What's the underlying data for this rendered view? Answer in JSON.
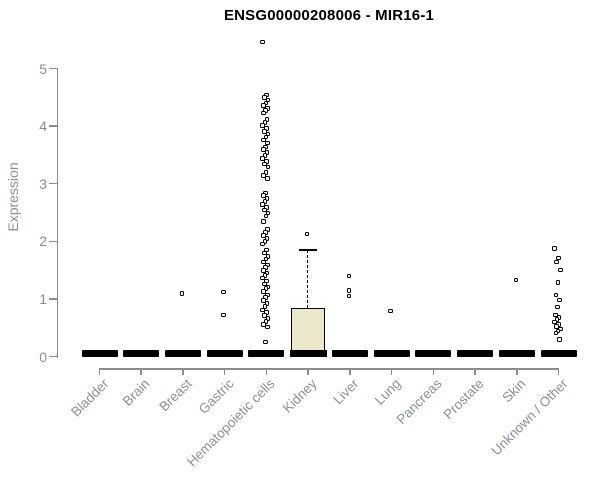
{
  "chart_data": {
    "type": "boxplot",
    "title": "ENSG00000208006 - MIR16-1",
    "xlabel": "",
    "ylabel": "Expression",
    "ylim": [
      0,
      5.6
    ],
    "yticks": [
      0,
      1,
      2,
      3,
      4,
      5
    ],
    "grid": false,
    "legend": null,
    "colors": {
      "box_fill": "#ece8cc",
      "box_border": "#000000",
      "axis_line": "#8c8c8c",
      "tick_label": "#8a909b",
      "title": "#000000",
      "point": "#000000",
      "background": "#ffffff"
    },
    "categories": [
      "Bladder",
      "Brain",
      "Breast",
      "Gastric",
      "Hematopoietic cells",
      "Kidney",
      "Liver",
      "Lung",
      "Pancreas",
      "Prostate",
      "Skin",
      "Unknown / Other"
    ],
    "boxes": [
      {
        "category": "Bladder",
        "q1": 0,
        "median": 0.04,
        "q3": 0.07,
        "whisker_low": 0,
        "whisker_high": 0.07,
        "collapsed": true,
        "outliers": []
      },
      {
        "category": "Brain",
        "q1": 0,
        "median": 0.04,
        "q3": 0.07,
        "whisker_low": 0,
        "whisker_high": 0.07,
        "collapsed": true,
        "outliers": []
      },
      {
        "category": "Breast",
        "q1": 0,
        "median": 0.04,
        "q3": 0.07,
        "whisker_low": 0,
        "whisker_high": 0.07,
        "collapsed": true,
        "outliers": [
          1.09
        ]
      },
      {
        "category": "Gastric",
        "q1": 0,
        "median": 0.04,
        "q3": 0.07,
        "whisker_low": 0,
        "whisker_high": 0.07,
        "collapsed": true,
        "outliers": [
          1.12,
          0.72
        ]
      },
      {
        "category": "Hematopoietic cells",
        "q1": 0,
        "median": 0.04,
        "q3": 0.07,
        "whisker_low": 0,
        "whisker_high": 0.07,
        "collapsed": true,
        "outliers": [
          5.46,
          4.54,
          4.5,
          4.45,
          4.4,
          4.36,
          4.31,
          4.27,
          4.23,
          4.11,
          4.06,
          4.01,
          3.96,
          3.91,
          3.86,
          3.81,
          3.76,
          3.71,
          3.64,
          3.59,
          3.54,
          3.49,
          3.44,
          3.39,
          3.34,
          3.29,
          3.19,
          3.14,
          3.09,
          2.84,
          2.79,
          2.74,
          2.69,
          2.64,
          2.59,
          2.54,
          2.49,
          2.44,
          2.34,
          2.2,
          2.15,
          2.1,
          2.05,
          2.0,
          1.95,
          1.85,
          1.8,
          1.74,
          1.69,
          1.64,
          1.59,
          1.54,
          1.49,
          1.45,
          1.41,
          1.36,
          1.31,
          1.26,
          1.21,
          1.18,
          1.13,
          1.07,
          1.02,
          0.97,
          0.92,
          0.87,
          0.81,
          0.76,
          0.71,
          0.66,
          0.61,
          0.56,
          0.51,
          0.25
        ]
      },
      {
        "category": "Kidney",
        "q1": 0.02,
        "median": 0.05,
        "q3": 0.84,
        "whisker_low": 0,
        "whisker_high": 1.85,
        "collapsed": false,
        "outliers": [
          2.13
        ]
      },
      {
        "category": "Liver",
        "q1": 0,
        "median": 0.04,
        "q3": 0.07,
        "whisker_low": 0,
        "whisker_high": 0.07,
        "collapsed": true,
        "outliers": [
          1.4,
          1.15,
          1.05
        ]
      },
      {
        "category": "Lung",
        "q1": 0,
        "median": 0.04,
        "q3": 0.07,
        "whisker_low": 0,
        "whisker_high": 0.07,
        "collapsed": true,
        "outliers": [
          0.79
        ]
      },
      {
        "category": "Pancreas",
        "q1": 0,
        "median": 0.04,
        "q3": 0.07,
        "whisker_low": 0,
        "whisker_high": 0.07,
        "collapsed": true,
        "outliers": []
      },
      {
        "category": "Prostate",
        "q1": 0,
        "median": 0.04,
        "q3": 0.07,
        "whisker_low": 0,
        "whisker_high": 0.07,
        "collapsed": true,
        "outliers": []
      },
      {
        "category": "Skin",
        "q1": 0,
        "median": 0.04,
        "q3": 0.07,
        "whisker_low": 0,
        "whisker_high": 0.07,
        "collapsed": true,
        "outliers": [
          1.33
        ]
      },
      {
        "category": "Unknown / Other",
        "q1": 0,
        "median": 0.04,
        "q3": 0.07,
        "whisker_low": 0,
        "whisker_high": 0.07,
        "collapsed": true,
        "outliers": [
          1.87,
          1.71,
          1.64,
          1.5,
          1.28,
          1.07,
          0.98,
          0.86,
          0.72,
          0.68,
          0.64,
          0.6,
          0.56,
          0.52,
          0.48,
          0.44,
          0.41,
          0.29
        ]
      }
    ]
  }
}
